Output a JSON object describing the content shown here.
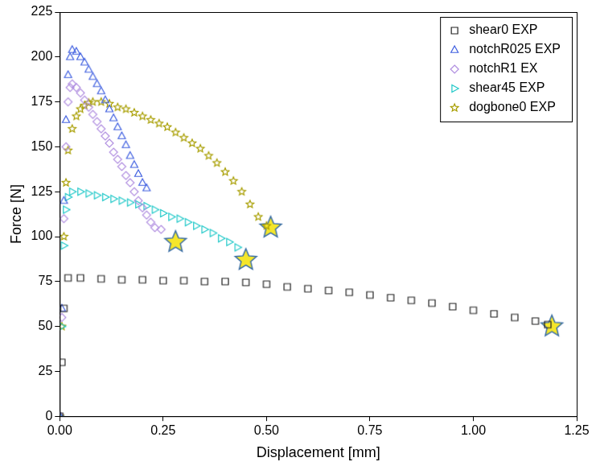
{
  "chart_data": {
    "type": "scatter",
    "x_label": "Displacement [mm]",
    "y_label": "Force [N]",
    "xlim": [
      0,
      1.25
    ],
    "xticks": [
      {
        "value": 0,
        "label": "0.00"
      },
      {
        "value": 0.25,
        "label": "0.25"
      },
      {
        "value": 0.5,
        "label": "0.50"
      },
      {
        "value": 0.75,
        "label": "0.75"
      },
      {
        "value": 1,
        "label": "1.00"
      },
      {
        "value": 1.25,
        "label": "1.25"
      }
    ],
    "ylim": [
      0,
      225
    ],
    "yticks": [
      0,
      25,
      50,
      75,
      100,
      125,
      150,
      175,
      200,
      225
    ],
    "grid": false,
    "legend": "upper right",
    "series": [
      {
        "name": "shear0 EXP",
        "color": "#222222",
        "marker": "square",
        "x": [
          0,
          0.005,
          0.01,
          0.02,
          0.05,
          0.1,
          0.15,
          0.2,
          0.25,
          0.3,
          0.35,
          0.4,
          0.45,
          0.5,
          0.55,
          0.6,
          0.65,
          0.7,
          0.75,
          0.8,
          0.85,
          0.9,
          0.95,
          1.0,
          1.05,
          1.1,
          1.15,
          1.18
        ],
        "values": [
          0,
          30,
          60,
          77,
          77,
          76.5,
          76,
          76,
          75.5,
          75.5,
          75,
          75,
          74.5,
          73.5,
          72,
          71,
          70,
          69,
          67.5,
          66,
          64.5,
          63,
          61,
          59,
          57,
          55,
          53,
          51
        ],
        "fracture": {
          "x": 1.19,
          "y": 50
        }
      },
      {
        "name": "notchR025 EXP",
        "color": "#3f5fe0",
        "marker": "triangle",
        "x": [
          0,
          0.005,
          0.01,
          0.015,
          0.02,
          0.025,
          0.03,
          0.04,
          0.05,
          0.06,
          0.07,
          0.08,
          0.09,
          0.1,
          0.11,
          0.12,
          0.13,
          0.14,
          0.15,
          0.16,
          0.17,
          0.18,
          0.19,
          0.2,
          0.21
        ],
        "values": [
          0,
          60,
          120,
          165,
          190,
          200,
          204,
          203,
          200,
          197,
          193,
          189,
          185,
          181,
          176,
          171,
          166,
          161,
          156,
          151,
          145,
          140,
          135,
          130,
          127
        ]
      },
      {
        "name": "notchR1 EX",
        "color": "#b08ee0",
        "marker": "diamond",
        "x": [
          0,
          0.005,
          0.01,
          0.015,
          0.02,
          0.025,
          0.03,
          0.04,
          0.05,
          0.06,
          0.07,
          0.08,
          0.09,
          0.1,
          0.11,
          0.12,
          0.13,
          0.14,
          0.15,
          0.16,
          0.17,
          0.18,
          0.19,
          0.2,
          0.21,
          0.22,
          0.23,
          0.245
        ],
        "values": [
          0,
          55,
          110,
          150,
          175,
          183,
          185,
          183,
          180,
          176,
          172,
          168,
          164,
          160,
          156,
          152,
          147,
          143,
          139,
          134,
          130,
          125,
          120,
          116,
          112,
          108,
          105,
          104
        ],
        "fracture": {
          "x": 0.28,
          "y": 97
        }
      },
      {
        "name": "shear45 EXP",
        "color": "#1fc8c8",
        "marker": "triangle-right",
        "x": [
          0,
          0.005,
          0.01,
          0.015,
          0.02,
          0.03,
          0.05,
          0.07,
          0.09,
          0.11,
          0.13,
          0.15,
          0.17,
          0.19,
          0.21,
          0.23,
          0.25,
          0.27,
          0.29,
          0.31,
          0.33,
          0.35,
          0.37,
          0.39,
          0.41,
          0.43
        ],
        "values": [
          0,
          50,
          95,
          115,
          122,
          125,
          125,
          124,
          123,
          122,
          121,
          120,
          119,
          118,
          117,
          115,
          113,
          111,
          110,
          108,
          106,
          104,
          102,
          99,
          97,
          94
        ],
        "fracture": {
          "x": 0.45,
          "y": 87
        }
      },
      {
        "name": "dogbone0 EXP",
        "color": "#a89e00",
        "marker": "star",
        "x": [
          0,
          0.005,
          0.01,
          0.015,
          0.02,
          0.03,
          0.04,
          0.05,
          0.06,
          0.07,
          0.08,
          0.1,
          0.12,
          0.14,
          0.16,
          0.18,
          0.2,
          0.22,
          0.24,
          0.26,
          0.28,
          0.3,
          0.32,
          0.34,
          0.36,
          0.38,
          0.4,
          0.42,
          0.44,
          0.46,
          0.48,
          0.5
        ],
        "values": [
          0,
          50,
          100,
          130,
          148,
          160,
          167,
          171,
          173,
          174.5,
          175,
          175,
          174,
          172,
          171,
          169,
          167,
          165,
          163,
          161,
          158,
          155,
          152,
          149,
          145,
          141,
          136,
          131,
          125,
          118,
          111,
          106
        ],
        "fracture": {
          "x": 0.51,
          "y": 105
        }
      }
    ]
  }
}
